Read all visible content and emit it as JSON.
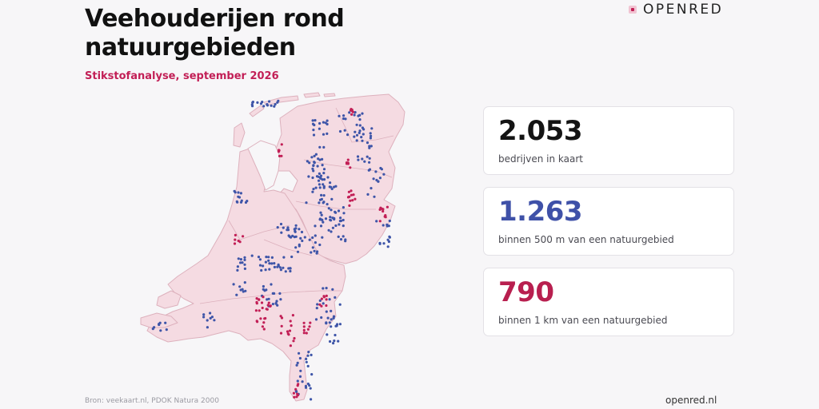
{
  "header": {
    "title": "Veehouderijen rond natuurgebieden",
    "subtitle": "Stikstofanalyse, september 2026"
  },
  "brand": {
    "name": "OPENRED"
  },
  "map": {
    "colors": {
      "land": "#f5dbe2",
      "border": "#ddb1bd",
      "blue": "#3e55a8",
      "red": "#c21f56"
    }
  },
  "stats": [
    {
      "value": "2.053",
      "label": "bedrijven in kaart",
      "color": "#141414"
    },
    {
      "value": "1.263",
      "label": "binnen 500 m van een natuurgebied",
      "color": "#3f51a8"
    },
    {
      "value": "790",
      "label": "binnen 1 km van een natuurgebied",
      "color": "#b81f4f"
    }
  ],
  "footer": {
    "source": "Bron: veekaart.nl, PDOK Natura 2000",
    "site": "openred.nl"
  }
}
